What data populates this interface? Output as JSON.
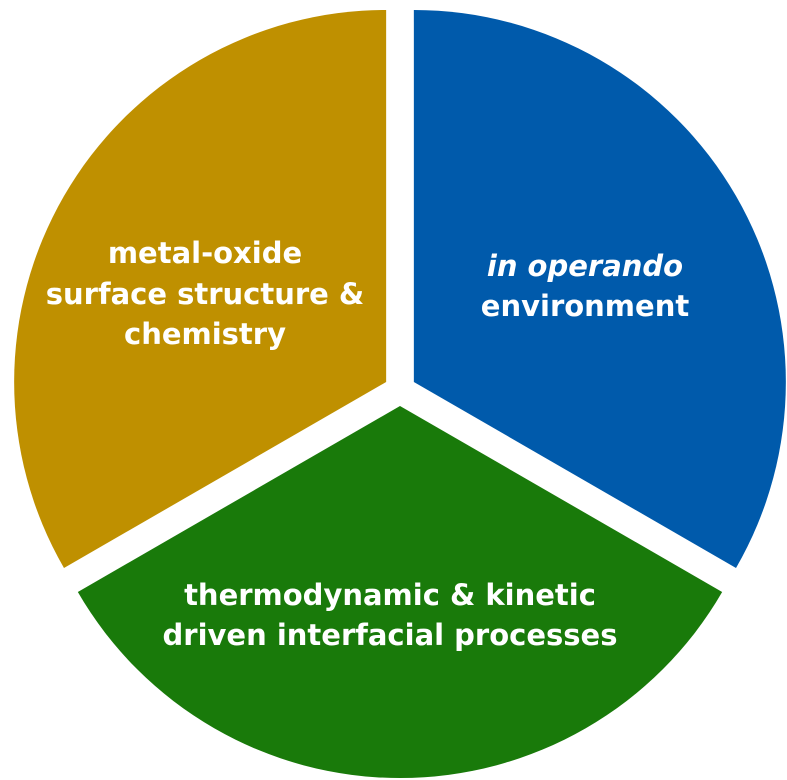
{
  "segments": [
    {
      "lines": [
        "metal-oxide",
        "surface structure &",
        "chemistry"
      ]
    },
    {
      "lines": [
        "in operando",
        "environment"
      ]
    },
    {
      "lines": [
        "thermodynamic & kinetic",
        "driven interfacial processes"
      ]
    }
  ]
}
